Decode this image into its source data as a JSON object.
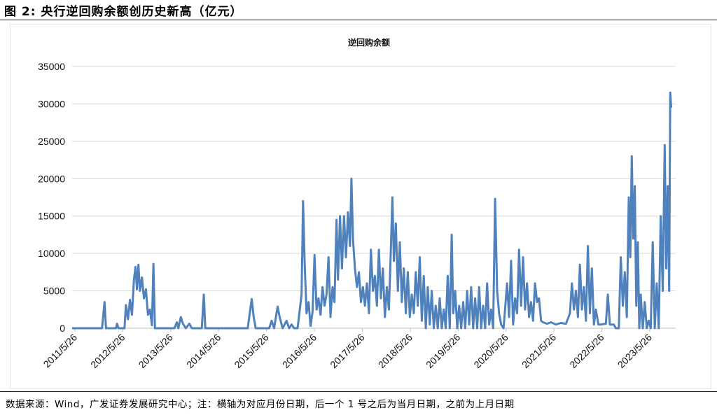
{
  "figure": {
    "title": "图 2: 央行逆回购余额创历史新高（亿元）",
    "source": "数据来源：Wind，广发证券发展研究中心；注：横轴为对应月份日期，后一个 1 号之后为当月日期，之前为上月日期"
  },
  "chart_data": {
    "type": "line",
    "title": "逆回购余额",
    "xlabel": "",
    "ylabel": "",
    "ylim": [
      0,
      35000
    ],
    "yticks": [
      0,
      5000,
      10000,
      15000,
      20000,
      25000,
      30000,
      35000
    ],
    "xticks": [
      "2011/5/26",
      "2012/5/26",
      "2013/5/26",
      "2014/5/26",
      "2015/5/26",
      "2016/5/26",
      "2017/5/26",
      "2018/5/26",
      "2019/5/26",
      "2020/5/26",
      "2021/5/26",
      "2022/5/26",
      "2023/5/26"
    ],
    "grid": "horizontal",
    "legend": "none",
    "series_color": "#4F81BD",
    "series": [
      {
        "values": [
          [
            2011.4,
            0
          ],
          [
            2012.0,
            0
          ],
          [
            2012.05,
            3500
          ],
          [
            2012.08,
            0
          ],
          [
            2012.28,
            0
          ],
          [
            2012.3,
            600
          ],
          [
            2012.33,
            0
          ],
          [
            2012.45,
            0
          ],
          [
            2012.48,
            3100
          ],
          [
            2012.52,
            1200
          ],
          [
            2012.56,
            3800
          ],
          [
            2012.6,
            1800
          ],
          [
            2012.64,
            6500
          ],
          [
            2012.67,
            8200
          ],
          [
            2012.7,
            5200
          ],
          [
            2012.73,
            8500
          ],
          [
            2012.76,
            5000
          ],
          [
            2012.8,
            6800
          ],
          [
            2012.84,
            4000
          ],
          [
            2012.88,
            5200
          ],
          [
            2012.92,
            1800
          ],
          [
            2012.96,
            2500
          ],
          [
            2013.0,
            400
          ],
          [
            2013.03,
            8600
          ],
          [
            2013.06,
            0
          ],
          [
            2013.45,
            0
          ],
          [
            2013.5,
            800
          ],
          [
            2013.53,
            0
          ],
          [
            2013.58,
            1500
          ],
          [
            2013.62,
            600
          ],
          [
            2013.68,
            0
          ],
          [
            2013.75,
            600
          ],
          [
            2013.8,
            0
          ],
          [
            2014.0,
            0
          ],
          [
            2014.04,
            4500
          ],
          [
            2014.07,
            0
          ],
          [
            2014.92,
            0
          ],
          [
            2015.0,
            3900
          ],
          [
            2015.04,
            1500
          ],
          [
            2015.08,
            0
          ],
          [
            2015.35,
            0
          ],
          [
            2015.4,
            1000
          ],
          [
            2015.45,
            0
          ],
          [
            2015.52,
            2900
          ],
          [
            2015.56,
            1500
          ],
          [
            2015.62,
            0
          ],
          [
            2015.7,
            1000
          ],
          [
            2015.75,
            0
          ],
          [
            2015.8,
            500
          ],
          [
            2015.85,
            0
          ],
          [
            2015.92,
            0
          ],
          [
            2016.0,
            4500
          ],
          [
            2016.03,
            17000
          ],
          [
            2016.06,
            9000
          ],
          [
            2016.1,
            2000
          ],
          [
            2016.14,
            3500
          ],
          [
            2016.18,
            300
          ],
          [
            2016.22,
            2200
          ],
          [
            2016.26,
            9800
          ],
          [
            2016.3,
            2500
          ],
          [
            2016.34,
            4000
          ],
          [
            2016.38,
            1800
          ],
          [
            2016.42,
            5500
          ],
          [
            2016.46,
            3000
          ],
          [
            2016.5,
            4500
          ],
          [
            2016.54,
            9500
          ],
          [
            2016.58,
            1500
          ],
          [
            2016.62,
            5500
          ],
          [
            2016.66,
            3500
          ],
          [
            2016.7,
            14500
          ],
          [
            2016.73,
            6500
          ],
          [
            2016.77,
            15000
          ],
          [
            2016.81,
            8000
          ],
          [
            2016.85,
            15000
          ],
          [
            2016.89,
            9500
          ],
          [
            2016.93,
            15500
          ],
          [
            2016.97,
            11000
          ],
          [
            2017.0,
            20000
          ],
          [
            2017.03,
            12000
          ],
          [
            2017.07,
            8000
          ],
          [
            2017.11,
            5500
          ],
          [
            2017.15,
            7500
          ],
          [
            2017.19,
            3500
          ],
          [
            2017.23,
            5500
          ],
          [
            2017.27,
            3000
          ],
          [
            2017.31,
            6000
          ],
          [
            2017.35,
            2000
          ],
          [
            2017.39,
            10500
          ],
          [
            2017.43,
            5000
          ],
          [
            2017.47,
            7000
          ],
          [
            2017.51,
            3000
          ],
          [
            2017.55,
            10500
          ],
          [
            2017.59,
            4000
          ],
          [
            2017.63,
            8000
          ],
          [
            2017.67,
            1500
          ],
          [
            2017.71,
            5500
          ],
          [
            2017.75,
            2500
          ],
          [
            2017.79,
            10500
          ],
          [
            2017.82,
            17500
          ],
          [
            2017.85,
            9000
          ],
          [
            2017.89,
            14000
          ],
          [
            2017.93,
            5000
          ],
          [
            2017.97,
            11500
          ],
          [
            2018.01,
            3500
          ],
          [
            2018.05,
            8000
          ],
          [
            2018.09,
            2000
          ],
          [
            2018.13,
            7500
          ],
          [
            2018.17,
            1500
          ],
          [
            2018.21,
            4500
          ],
          [
            2018.25,
            2000
          ],
          [
            2018.29,
            7500
          ],
          [
            2018.33,
            3000
          ],
          [
            2018.37,
            9500
          ],
          [
            2018.41,
            1000
          ],
          [
            2018.45,
            7000
          ],
          [
            2018.49,
            0
          ],
          [
            2018.53,
            5500
          ],
          [
            2018.57,
            500
          ],
          [
            2018.61,
            5000
          ],
          [
            2018.65,
            0
          ],
          [
            2018.69,
            3000
          ],
          [
            2018.73,
            0
          ],
          [
            2018.77,
            4000
          ],
          [
            2018.81,
            0
          ],
          [
            2018.85,
            2500
          ],
          [
            2018.89,
            0
          ],
          [
            2018.93,
            7000
          ],
          [
            2018.97,
            0
          ],
          [
            2019.01,
            12500
          ],
          [
            2019.04,
            2000
          ],
          [
            2019.08,
            5000
          ],
          [
            2019.12,
            0
          ],
          [
            2019.16,
            3000
          ],
          [
            2019.2,
            0
          ],
          [
            2019.24,
            3500
          ],
          [
            2019.28,
            0
          ],
          [
            2019.32,
            5000
          ],
          [
            2019.36,
            500
          ],
          [
            2019.4,
            5500
          ],
          [
            2019.44,
            0
          ],
          [
            2019.48,
            4000
          ],
          [
            2019.52,
            0
          ],
          [
            2019.56,
            5500
          ],
          [
            2019.6,
            0
          ],
          [
            2019.64,
            3000
          ],
          [
            2019.68,
            0
          ],
          [
            2019.72,
            6000
          ],
          [
            2019.76,
            500
          ],
          [
            2019.8,
            2500
          ],
          [
            2019.84,
            0
          ],
          [
            2019.88,
            17300
          ],
          [
            2019.92,
            5000
          ],
          [
            2019.96,
            2000
          ],
          [
            2020.0,
            500
          ],
          [
            2020.05,
            0
          ],
          [
            2020.12,
            6000
          ],
          [
            2020.16,
            1500
          ],
          [
            2020.2,
            9000
          ],
          [
            2020.24,
            500
          ],
          [
            2020.28,
            4000
          ],
          [
            2020.32,
            2000
          ],
          [
            2020.36,
            10500
          ],
          [
            2020.4,
            3000
          ],
          [
            2020.44,
            9500
          ],
          [
            2020.48,
            2500
          ],
          [
            2020.52,
            6000
          ],
          [
            2020.56,
            1500
          ],
          [
            2020.6,
            3500
          ],
          [
            2020.64,
            1000
          ],
          [
            2020.68,
            6000
          ],
          [
            2020.72,
            3500
          ],
          [
            2020.76,
            4000
          ],
          [
            2020.8,
            1000
          ],
          [
            2020.84,
            800
          ],
          [
            2020.92,
            600
          ],
          [
            2021.0,
            800
          ],
          [
            2021.1,
            500
          ],
          [
            2021.2,
            700
          ],
          [
            2021.3,
            600
          ],
          [
            2021.38,
            2000
          ],
          [
            2021.42,
            6000
          ],
          [
            2021.46,
            2500
          ],
          [
            2021.5,
            5000
          ],
          [
            2021.54,
            1500
          ],
          [
            2021.58,
            8500
          ],
          [
            2021.62,
            2500
          ],
          [
            2021.66,
            5500
          ],
          [
            2021.7,
            1000
          ],
          [
            2021.74,
            11000
          ],
          [
            2021.78,
            2000
          ],
          [
            2021.82,
            8000
          ],
          [
            2021.86,
            500
          ],
          [
            2021.9,
            2500
          ],
          [
            2021.95,
            500
          ],
          [
            2022.0,
            500
          ],
          [
            2022.1,
            600
          ],
          [
            2022.14,
            4500
          ],
          [
            2022.18,
            500
          ],
          [
            2022.26,
            500
          ],
          [
            2022.3,
            0
          ],
          [
            2022.36,
            0
          ],
          [
            2022.4,
            9500
          ],
          [
            2022.44,
            3000
          ],
          [
            2022.48,
            7500
          ],
          [
            2022.52,
            1500
          ],
          [
            2022.56,
            17500
          ],
          [
            2022.59,
            9500
          ],
          [
            2022.62,
            23000
          ],
          [
            2022.65,
            12000
          ],
          [
            2022.68,
            19000
          ],
          [
            2022.71,
            3000
          ],
          [
            2022.74,
            11500
          ],
          [
            2022.77,
            0
          ],
          [
            2022.8,
            4500
          ],
          [
            2022.84,
            0
          ],
          [
            2022.88,
            3500
          ],
          [
            2022.92,
            0
          ],
          [
            2022.96,
            1000
          ],
          [
            2023.0,
            0
          ],
          [
            2023.04,
            11500
          ],
          [
            2023.08,
            0
          ],
          [
            2023.12,
            6000
          ],
          [
            2023.16,
            0
          ],
          [
            2023.2,
            15000
          ],
          [
            2023.24,
            5000
          ],
          [
            2023.28,
            24500
          ],
          [
            2023.31,
            8000
          ],
          [
            2023.34,
            19000
          ],
          [
            2023.37,
            5000
          ],
          [
            2023.39,
            31500
          ],
          [
            2023.41,
            29500
          ]
        ]
      }
    ]
  }
}
